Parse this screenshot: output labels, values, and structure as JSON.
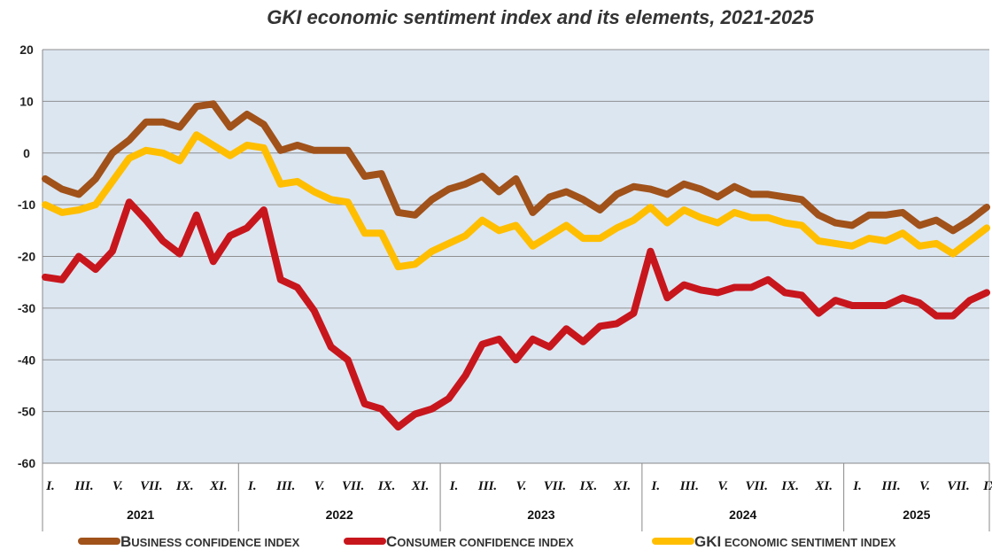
{
  "chart_data": {
    "type": "line",
    "title": "GKI economic sentiment index and its elements, 2021-2025",
    "xlabel": "",
    "ylabel": "",
    "ylim": [
      -60,
      20
    ],
    "yticks": [
      20,
      10,
      0,
      -10,
      -20,
      -30,
      -40,
      -50,
      -60
    ],
    "grid": true,
    "legend_position": "bottom",
    "years": [
      "2021",
      "2022",
      "2023",
      "2024",
      "2025"
    ],
    "month_ticks": [
      [
        "I.",
        "III.",
        "V.",
        "VII.",
        "IX.",
        "XI."
      ],
      [
        "I.",
        "III.",
        "V.",
        "VII.",
        "IX.",
        "XI."
      ],
      [
        "I.",
        "III.",
        "V.",
        "VII.",
        "IX.",
        "XI."
      ],
      [
        "I.",
        "III.",
        "V.",
        "VII.",
        "IX.",
        "XI."
      ],
      [
        "I.",
        "III.",
        "V.",
        "VII.",
        "IX."
      ]
    ],
    "series": [
      {
        "name": "Business confidence index",
        "color": "#a0521a",
        "values": [
          -5,
          -7,
          -8,
          -5,
          0,
          2.5,
          6,
          6,
          5,
          9,
          9.5,
          5,
          7.5,
          5.5,
          0.5,
          1.5,
          0.5,
          0.5,
          0.5,
          -4.5,
          -4,
          -11.5,
          -12,
          -9,
          -7,
          -6,
          -4.5,
          -7.5,
          -5,
          -11.5,
          -8.5,
          -7.5,
          -9,
          -11,
          -8,
          -6.5,
          -7,
          -8,
          -6,
          -7,
          -8.5,
          -6.5,
          -8,
          -8,
          -8.5,
          -9,
          -12,
          -13.5,
          -14,
          -12,
          -12,
          -11.5,
          -14,
          -13,
          -15,
          -13,
          -10.5
        ]
      },
      {
        "name": "Consumer confidence index",
        "color": "#c8161d",
        "values": [
          -24,
          -24.5,
          -20,
          -22.5,
          -19,
          -9.5,
          -13,
          -17,
          -19.5,
          -12,
          -21,
          -16,
          -14.5,
          -11,
          -24.5,
          -26,
          -30.5,
          -37.5,
          -40,
          -48.5,
          -49.5,
          -53,
          -50.5,
          -49.5,
          -47.5,
          -43,
          -37,
          -36,
          -40,
          -36,
          -37.5,
          -34,
          -36.5,
          -33.5,
          -33,
          -31,
          -19,
          -28,
          -25.5,
          -26.5,
          -27,
          -26,
          -26,
          -24.5,
          -27,
          -27.5,
          -31,
          -28.5,
          -29.5,
          -29.5,
          -29.5,
          -28,
          -29,
          -31.5,
          -31.5,
          -28.5,
          -27
        ]
      },
      {
        "name": "GKI economic sentiment index",
        "color": "#ffbe00",
        "values": [
          -10,
          -11.5,
          -11,
          -10,
          -5.5,
          -1,
          0.5,
          0,
          -1.5,
          3.5,
          1.5,
          -0.5,
          1.5,
          1,
          -6,
          -5.5,
          -7.5,
          -9,
          -9.5,
          -15.5,
          -15.5,
          -22,
          -21.5,
          -19,
          -17.5,
          -16,
          -13,
          -15,
          -14,
          -18,
          -16,
          -14,
          -16.5,
          -16.5,
          -14.5,
          -13,
          -10.5,
          -13.5,
          -11,
          -12.5,
          -13.5,
          -11.5,
          -12.5,
          -12.5,
          -13.5,
          -14,
          -17,
          -17.5,
          -18,
          -16.5,
          -17,
          -15.5,
          -18,
          -17.5,
          -19.5,
          -17,
          -14.5
        ]
      }
    ],
    "legend": [
      {
        "initial": "B",
        "rest": "USINESS CONFIDENCE INDEX",
        "color": "#a0521a"
      },
      {
        "initial": "C",
        "rest": "ONSUMER CONFIDENCE INDEX",
        "color": "#c8161d"
      },
      {
        "initial": "GKI",
        "rest": " ECONOMIC SENTIMENT INDEX",
        "color": "#ffbe00"
      }
    ]
  }
}
